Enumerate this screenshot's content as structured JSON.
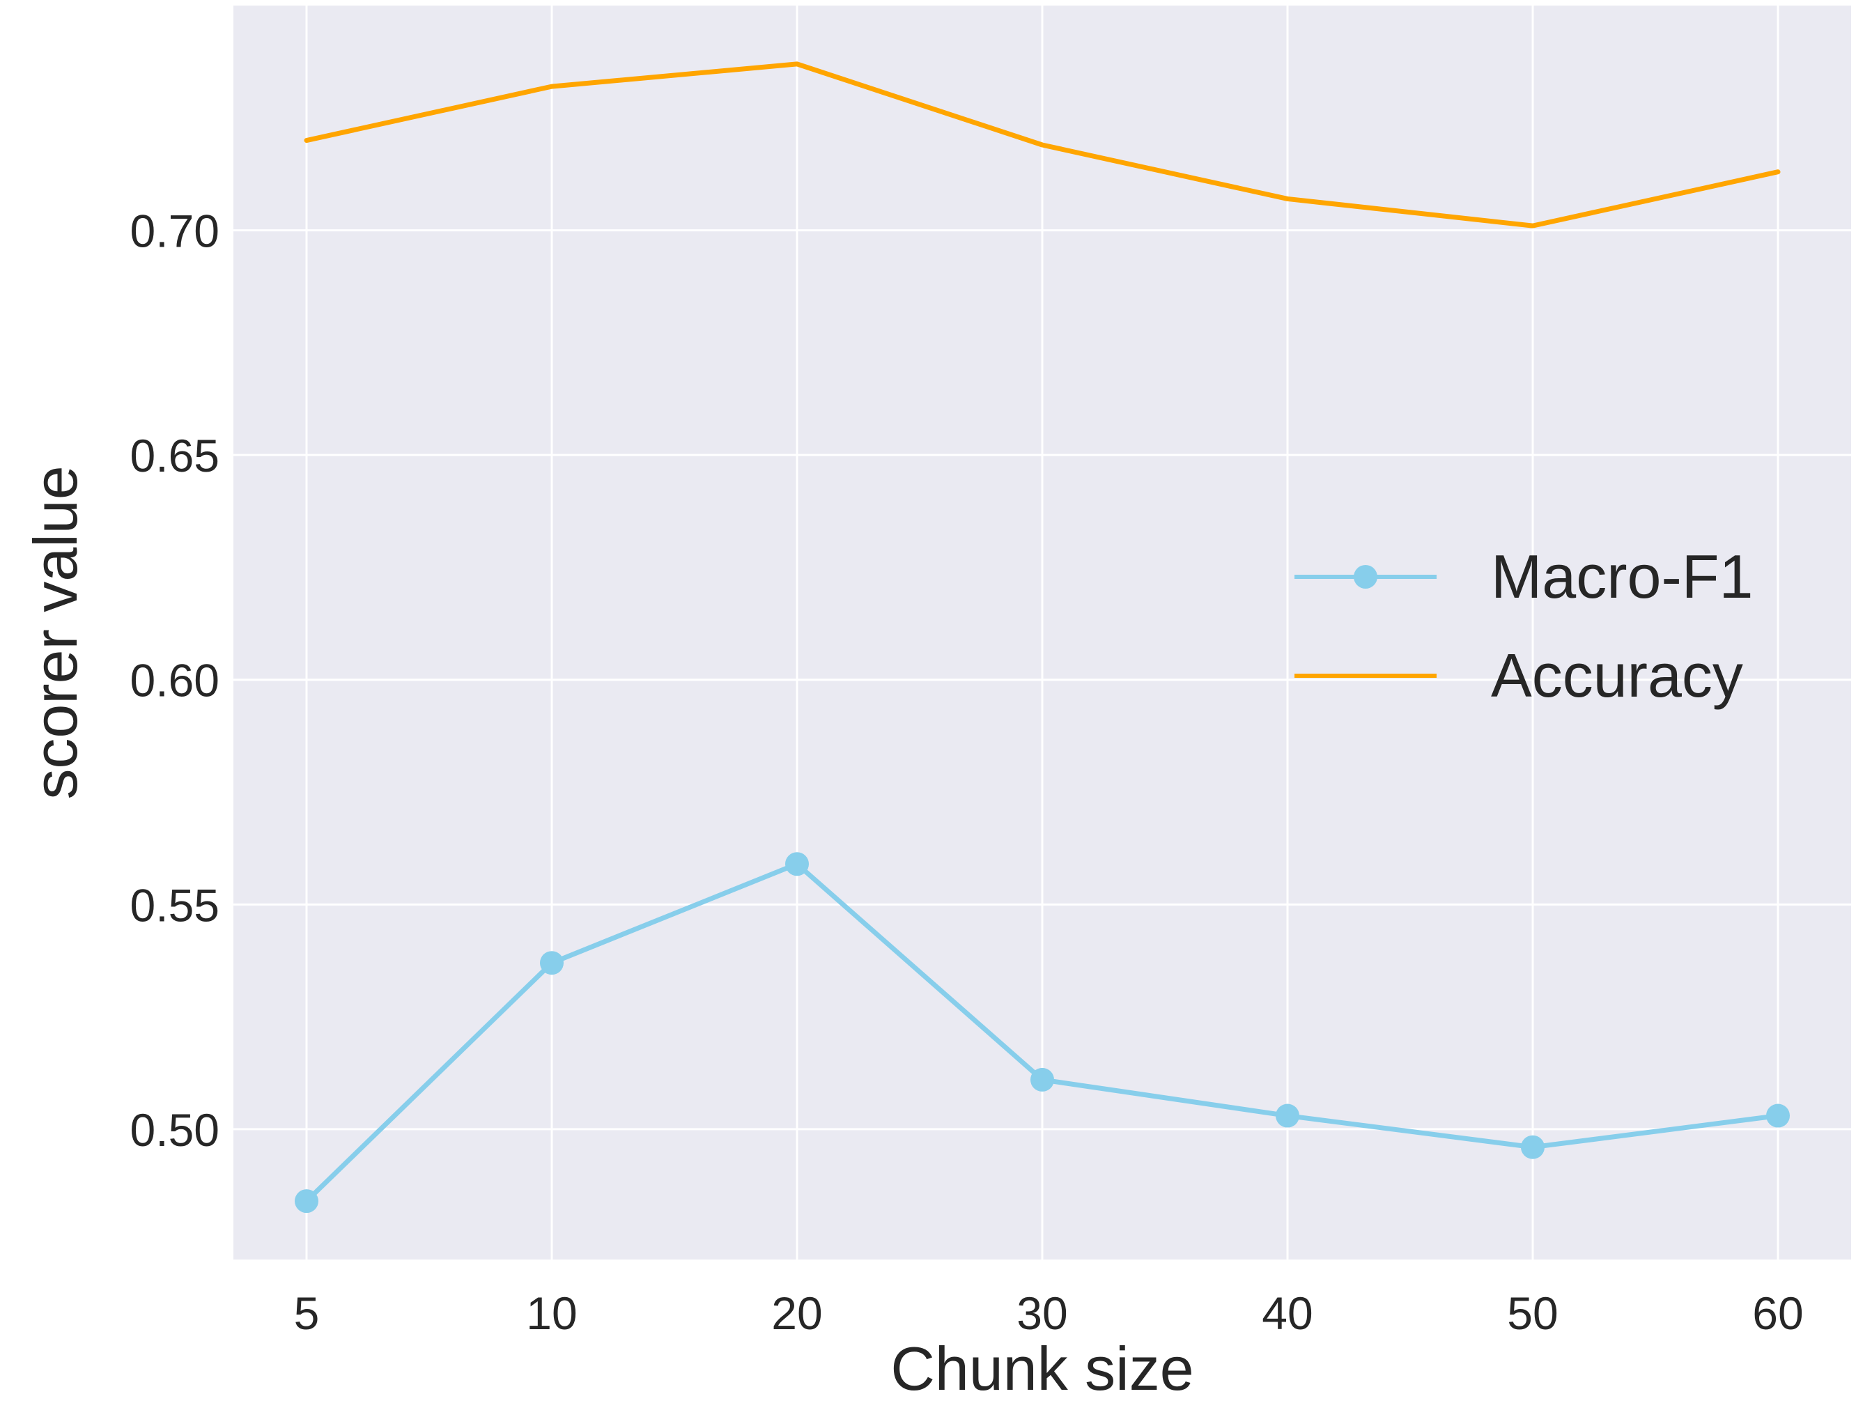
{
  "chart_data": {
    "type": "line",
    "x": [
      "5",
      "10",
      "20",
      "30",
      "40",
      "50",
      "60"
    ],
    "series": [
      {
        "name": "Macro-F1",
        "values": [
          0.484,
          0.537,
          0.559,
          0.511,
          0.503,
          0.496,
          0.503
        ],
        "color": "#87CEEB",
        "marker": "circle"
      },
      {
        "name": "Accuracy",
        "values": [
          0.72,
          0.732,
          0.737,
          0.719,
          0.707,
          0.701,
          0.713
        ],
        "color": "#FFA500",
        "marker": "none"
      }
    ],
    "xlabel": "Chunk size",
    "ylabel": "scorer value",
    "ylim": [
      0.471,
      0.75
    ],
    "yticks": [
      "0.50",
      "0.55",
      "0.60",
      "0.65",
      "0.70"
    ],
    "ytick_values": [
      0.5,
      0.55,
      0.6,
      0.65,
      0.7
    ],
    "grid": true,
    "legend_position": "center-right",
    "background": "#EAEAF2",
    "grid_color": "#FFFFFF"
  }
}
